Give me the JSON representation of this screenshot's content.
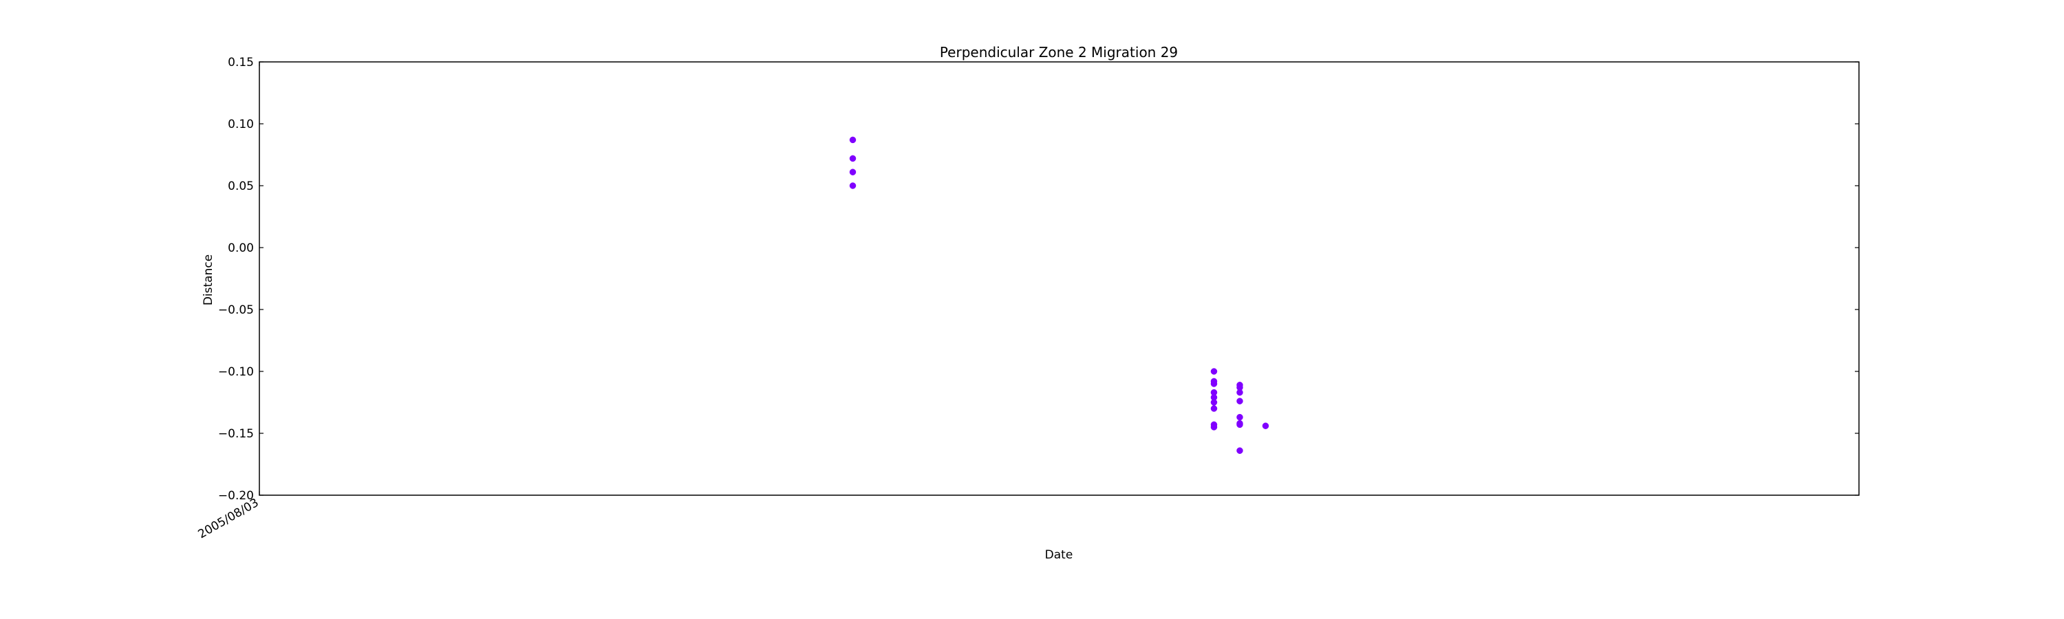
{
  "chart_data": {
    "type": "scatter",
    "title": "Perpendicular Zone 2 Migration 29",
    "xlabel": "Date",
    "ylabel": "Distance",
    "ylim": [
      -0.2,
      0.15
    ],
    "yticks": [
      "0.15",
      "0.10",
      "0.05",
      "0.00",
      "−0.05",
      "−0.10",
      "−0.15",
      "−0.20"
    ],
    "ytick_values": [
      0.15,
      0.1,
      0.05,
      0.0,
      -0.05,
      -0.1,
      -0.15,
      -0.2
    ],
    "xlim": [
      "2005/08/03",
      "2005/10/04"
    ],
    "xticks": [
      "2005/08/03"
    ],
    "xtick_values": [
      "2005/08/03"
    ],
    "grid": false,
    "marker_color": "#8000ff",
    "series": [
      {
        "points": [
          {
            "x": "2005/08/26",
            "y": 0.087
          },
          {
            "x": "2005/08/26",
            "y": 0.072
          },
          {
            "x": "2005/08/26",
            "y": 0.061
          },
          {
            "x": "2005/08/26",
            "y": 0.05
          },
          {
            "x": "2005/09/09",
            "y": -0.1
          },
          {
            "x": "2005/09/09",
            "y": -0.108
          },
          {
            "x": "2005/09/09",
            "y": -0.11
          },
          {
            "x": "2005/09/09",
            "y": -0.117
          },
          {
            "x": "2005/09/09",
            "y": -0.121
          },
          {
            "x": "2005/09/09",
            "y": -0.125
          },
          {
            "x": "2005/09/09",
            "y": -0.13
          },
          {
            "x": "2005/09/09",
            "y": -0.143
          },
          {
            "x": "2005/09/09",
            "y": -0.145
          },
          {
            "x": "2005/09/10",
            "y": -0.111
          },
          {
            "x": "2005/09/10",
            "y": -0.113
          },
          {
            "x": "2005/09/10",
            "y": -0.117
          },
          {
            "x": "2005/09/10",
            "y": -0.124
          },
          {
            "x": "2005/09/10",
            "y": -0.137
          },
          {
            "x": "2005/09/10",
            "y": -0.142
          },
          {
            "x": "2005/09/10",
            "y": -0.143
          },
          {
            "x": "2005/09/10",
            "y": -0.164
          },
          {
            "x": "2005/09/11",
            "y": -0.144
          }
        ]
      }
    ]
  }
}
